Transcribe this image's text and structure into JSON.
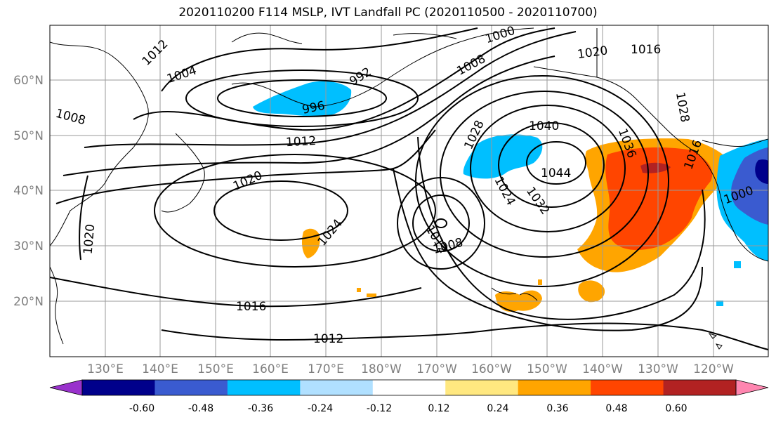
{
  "title": "2020110200 F114 MSLP, IVT Landfall PC (2020110500 - 2020110700)",
  "latitude_labels": [
    "60°N",
    "50°N",
    "40°N",
    "30°N",
    "20°N"
  ],
  "longitude_labels": [
    "130°E",
    "140°E",
    "150°E",
    "160°E",
    "170°E",
    "180°W",
    "170°W",
    "160°W",
    "150°W",
    "140°W",
    "130°W",
    "120°W"
  ],
  "isobar_labels": [
    "1012",
    "1004",
    "996",
    "992",
    "1000",
    "1008",
    "1020",
    "1016",
    "1028",
    "1008",
    "1012",
    "1020",
    "1040",
    "1044",
    "1028",
    "1036",
    "1024",
    "1032",
    "1012",
    "1008",
    "1024",
    "1020",
    "1016",
    "1012",
    "1000",
    "1016"
  ],
  "colorbar": {
    "tick_labels": [
      "-0.60",
      "-0.48",
      "-0.36",
      "-0.24",
      "-0.12",
      "0.12",
      "0.24",
      "0.36",
      "0.48",
      "0.60"
    ],
    "colors": [
      "#9932cc",
      "#00008b",
      "#3a5bd0",
      "#00bfff",
      "#b0e0ff",
      "#ffffff",
      "#ffe880",
      "#ffa500",
      "#ff4500",
      "#b22222",
      "#ff86b0"
    ]
  },
  "fill_colors": {
    "neg_light": "#00bfff",
    "neg_mid": "#3a5bd0",
    "neg_dark": "#00008b",
    "pos_light": "#ffa500",
    "pos_mid": "#ff4500",
    "pos_dark": "#b22222"
  }
}
